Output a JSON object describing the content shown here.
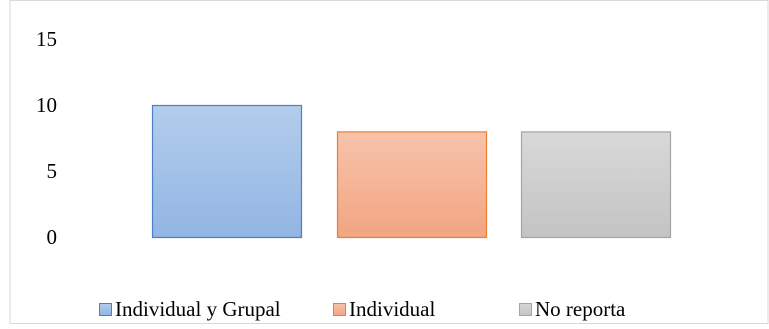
{
  "chart_data": {
    "type": "bar",
    "categories": [
      "Individual y Grupal",
      "Individual",
      "No reporta"
    ],
    "values": [
      10,
      8,
      8
    ],
    "ylim": [
      0,
      15
    ],
    "yticks": [
      0,
      5,
      10,
      15
    ],
    "grid": false,
    "legend_position": "bottom",
    "colors": {
      "Individual y Grupal": {
        "fill_top": "#b3cdec",
        "fill_bottom": "#92b5e3",
        "stroke": "#4a7fc9"
      },
      "Individual": {
        "fill_top": "#f7c3ab",
        "fill_bottom": "#f2a581",
        "stroke": "#ed7d31"
      },
      "No reporta": {
        "fill_top": "#d8d8d8",
        "fill_bottom": "#c4c4c4",
        "stroke": "#a5a5a5"
      }
    },
    "frame_color": "#d9d9d9",
    "text_color": "#000000"
  }
}
